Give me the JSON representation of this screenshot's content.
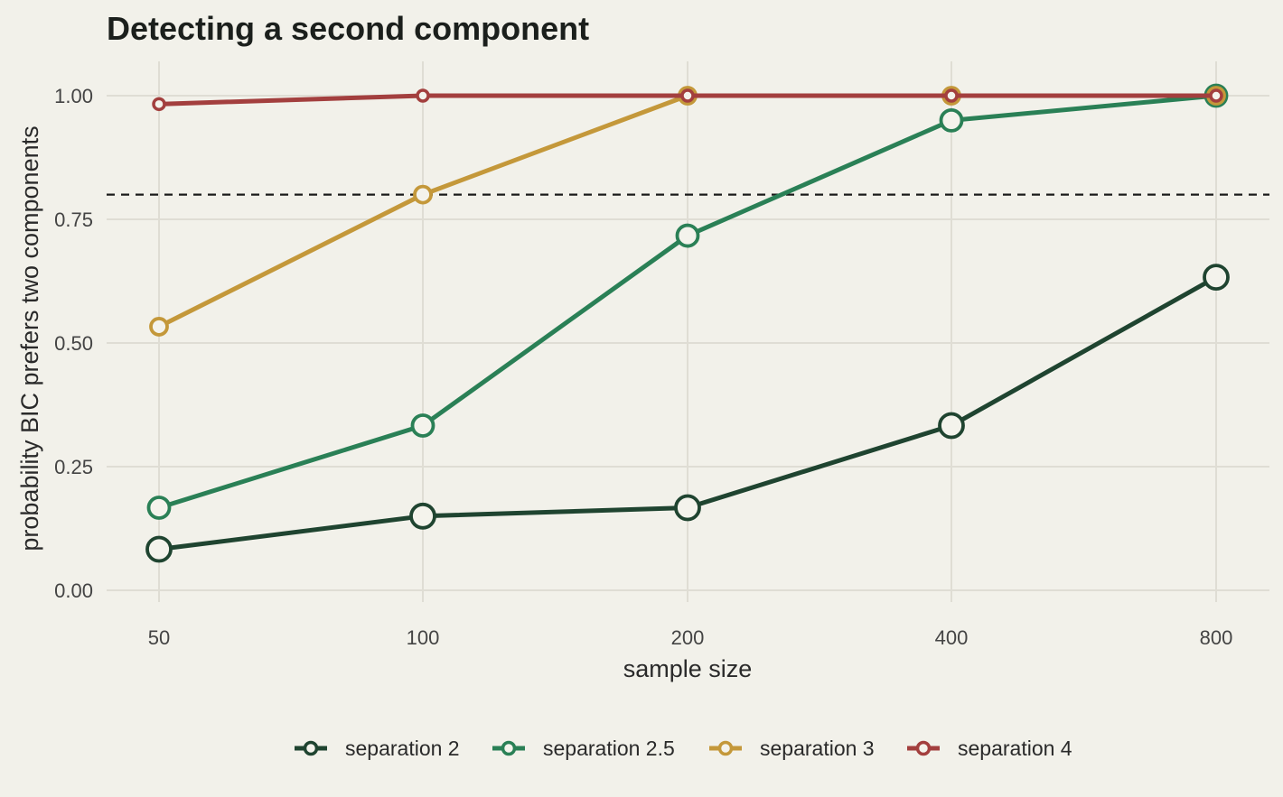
{
  "chart_data": {
    "type": "line",
    "title": "Detecting a second component",
    "xlabel": "sample size",
    "ylabel": "probability BIC prefers two components",
    "x": [
      50,
      100,
      200,
      400,
      800
    ],
    "x_tick_labels": [
      "50",
      "100",
      "200",
      "400",
      "800"
    ],
    "x_scale": "log2",
    "ylim": [
      0,
      1
    ],
    "y_ticks": [
      0,
      0.25,
      0.5,
      0.75,
      1.0
    ],
    "y_tick_labels": [
      "0.00",
      "0.25",
      "0.50",
      "0.75",
      "1.00"
    ],
    "reference_line": {
      "y": 0.8,
      "style": "dashed"
    },
    "grid": true,
    "legend_position": "bottom",
    "series": [
      {
        "name": "separation 2",
        "color": "#1f4430",
        "values": [
          0.083,
          0.15,
          0.167,
          0.333,
          0.633
        ]
      },
      {
        "name": "separation 2.5",
        "color": "#2a8056",
        "values": [
          0.167,
          0.333,
          0.717,
          0.95,
          1.0
        ]
      },
      {
        "name": "separation 3",
        "color": "#c4983a",
        "values": [
          0.533,
          0.8,
          1.0,
          1.0,
          1.0
        ]
      },
      {
        "name": "separation 4",
        "color": "#a33f3e",
        "values": [
          0.983,
          1.0,
          1.0,
          1.0,
          1.0
        ]
      }
    ],
    "background_color": "#f2f1ea",
    "grid_color": "#dfddd4"
  }
}
